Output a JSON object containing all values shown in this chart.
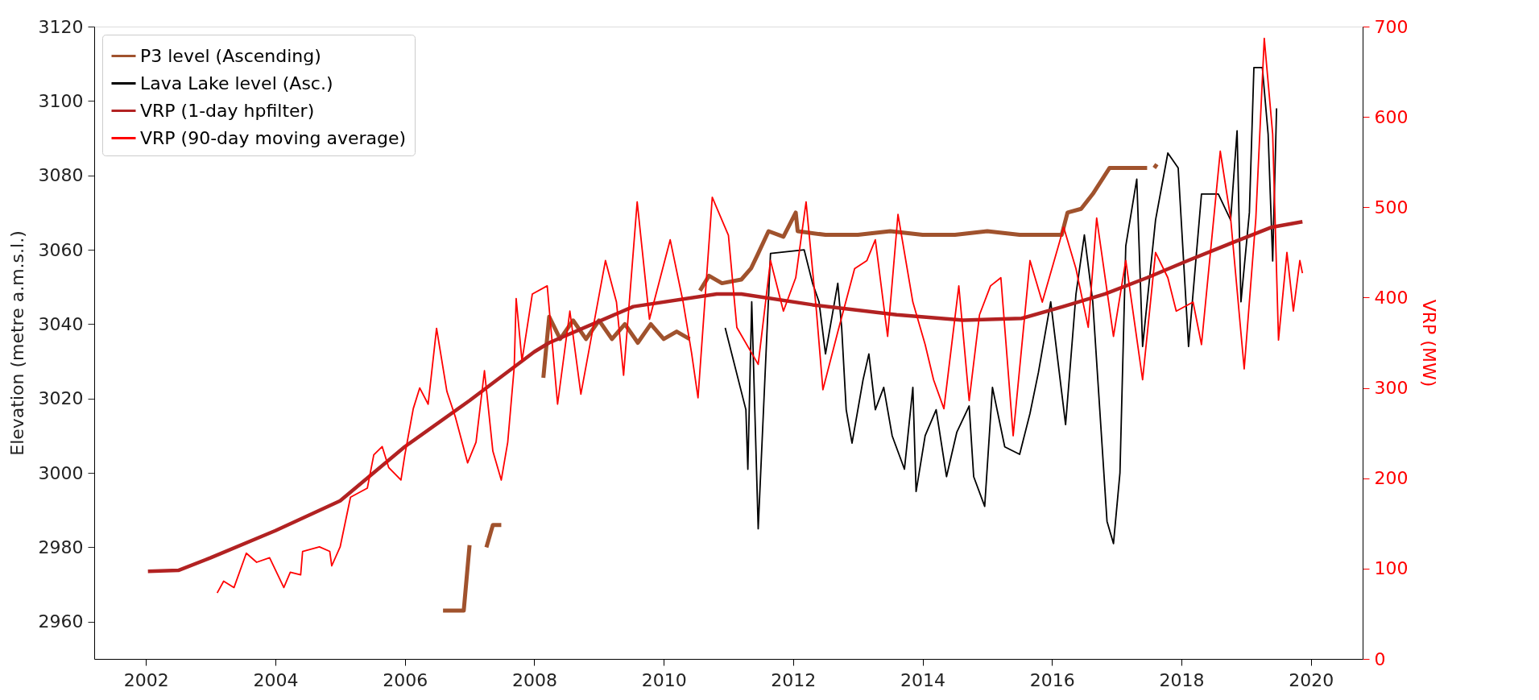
{
  "chart_data": {
    "type": "line",
    "xlim": [
      2001.2,
      2020.8
    ],
    "xticks": [
      2002,
      2004,
      2006,
      2008,
      2010,
      2012,
      2014,
      2016,
      2018,
      2020
    ],
    "ylim": [
      2950,
      3120
    ],
    "yticks": [
      2960,
      2980,
      3000,
      3020,
      3040,
      3060,
      3080,
      3100,
      3120
    ],
    "y2lim": [
      0,
      700
    ],
    "y2ticks": [
      0,
      100,
      200,
      300,
      400,
      500,
      600,
      700
    ],
    "ylabel": "Elevation (metre a.m.s.l.)",
    "y2label": "VRP (MW)",
    "legend": "top left",
    "grid": false,
    "series": [
      {
        "name": "P3 level (Ascending)",
        "color": "#a0522d",
        "x": [
          2006.59,
          2006.91,
          2007.0,
          2007.1,
          2007.26,
          2007.36,
          2007.49,
          2007.8,
          2008.14,
          2008.23,
          2008.4,
          2008.6,
          2008.8,
          2009.0,
          2009.2,
          2009.4,
          2009.6,
          2009.8,
          2010.0,
          2010.2,
          2010.4,
          2010.48,
          2010.56,
          2010.7,
          2010.9,
          2011.2,
          2011.35,
          2011.46,
          2011.62,
          2011.85,
          2012.04,
          2012.07,
          2012.5,
          2013.0,
          2013.5,
          2014.0,
          2014.5,
          2015.0,
          2015.5,
          2016.15,
          2016.24,
          2016.45,
          2016.63,
          2016.89,
          2017.2,
          2017.47,
          2017.53,
          2017.58,
          2017.62
        ],
        "values": [
          2963,
          2963,
          2980.6,
          null,
          2980,
          2986,
          2986,
          null,
          3025.6,
          3042,
          3036,
          3041,
          3036,
          3041,
          3036,
          3040,
          3035,
          3040,
          3036,
          3038,
          3036,
          null,
          3049,
          3053,
          3051,
          3052,
          3055,
          3059,
          3065,
          3063.5,
          3070,
          3065,
          3064,
          3064,
          3065,
          3064,
          3064,
          3065,
          3064,
          3064,
          3070,
          3071,
          3075,
          3082,
          3082,
          3082,
          null,
          3082,
          3083
        ]
      },
      {
        "name": "Lava Lake level (Asc.)",
        "color": "#000000",
        "x": [
          2010.95,
          2011.27,
          2011.3,
          2011.36,
          2011.46,
          2011.65,
          2012.17,
          2012.3,
          2012.4,
          2012.5,
          2012.69,
          2012.75,
          2012.82,
          2012.91,
          2013.08,
          2013.17,
          2013.27,
          2013.4,
          2013.53,
          2013.72,
          2013.85,
          2013.9,
          2014.04,
          2014.21,
          2014.37,
          2014.53,
          2014.72,
          2014.79,
          2014.96,
          2015.08,
          2015.27,
          2015.5,
          2015.66,
          2015.79,
          2015.98,
          2016.21,
          2016.37,
          2016.5,
          2016.63,
          2016.85,
          2016.95,
          2017.05,
          2017.14,
          2017.31,
          2017.4,
          2017.6,
          2017.79,
          2017.95,
          2018.11,
          2018.31,
          2018.57,
          2018.76,
          2018.86,
          2018.92,
          2019.05,
          2019.12,
          2019.25,
          2019.34,
          2019.41,
          2019.47
        ],
        "values": [
          3039,
          3017,
          3001,
          3046,
          2985,
          3059,
          3060,
          3051,
          3046,
          3032,
          3051,
          3039,
          3017,
          3008,
          3025,
          3032,
          3017,
          3023,
          3010,
          3001,
          3023,
          2995,
          3010,
          3017,
          2999,
          3011,
          3018,
          2999,
          2991,
          3023,
          3007,
          3005,
          3016,
          3027,
          3046,
          3013,
          3048,
          3064,
          3046,
          2987,
          2981,
          3000,
          3061,
          3079,
          3034,
          3068,
          3086,
          3082,
          3034,
          3075,
          3075,
          3068,
          3092,
          3046,
          3070,
          3109,
          3109,
          3091,
          3057,
          3098
        ]
      },
      {
        "name": "VRP (1-day hpfilter)",
        "color": "#b22222",
        "axis": "y2",
        "x": [
          2002.03,
          2002.5,
          2003.0,
          2004.0,
          2005.0,
          2006.0,
          2007.0,
          2008.0,
          2008.23,
          2009.53,
          2010.82,
          2011.2,
          2012.3,
          2013.6,
          2014.63,
          2015.53,
          2016.17,
          2016.82,
          2017.47,
          2018.1,
          2018.76,
          2019.4,
          2019.87
        ],
        "values": [
          97,
          98,
          112,
          142,
          175,
          235,
          286,
          340,
          350,
          390,
          404,
          404,
          392,
          381,
          375,
          377,
          390,
          404,
          422,
          441,
          460,
          478,
          484
        ]
      },
      {
        "name": "VRP (90-day moving average)",
        "color": "#ff0000",
        "axis": "y2",
        "x": [
          2003.1,
          2003.2,
          2003.36,
          2003.55,
          2003.71,
          2003.91,
          2004.13,
          2004.23,
          2004.39,
          2004.42,
          2004.68,
          2004.84,
          2004.87,
          2005.0,
          2005.16,
          2005.42,
          2005.52,
          2005.65,
          2005.75,
          2005.94,
          2006.0,
          2006.13,
          2006.23,
          2006.36,
          2006.49,
          2006.65,
          2006.78,
          2006.97,
          2007.1,
          2007.23,
          2007.36,
          2007.49,
          2007.59,
          2007.69,
          2007.72,
          2007.81,
          2007.97,
          2008.2,
          2008.36,
          2008.55,
          2008.72,
          2009.1,
          2009.27,
          2009.38,
          2009.59,
          2009.78,
          2010.1,
          2010.3,
          2010.43,
          2010.53,
          2010.75,
          2011.0,
          2011.13,
          2011.46,
          2011.65,
          2011.85,
          2012.04,
          2012.2,
          2012.36,
          2012.46,
          2012.69,
          2012.95,
          2013.14,
          2013.27,
          2013.46,
          2013.62,
          2013.85,
          2014.04,
          2014.17,
          2014.33,
          2014.56,
          2014.72,
          2014.88,
          2015.05,
          2015.21,
          2015.4,
          2015.66,
          2015.85,
          2016.11,
          2016.18,
          2016.37,
          2016.56,
          2016.69,
          2016.95,
          2017.14,
          2017.4,
          2017.6,
          2017.79,
          2017.92,
          2018.18,
          2018.31,
          2018.6,
          2018.76,
          2018.97,
          2019.15,
          2019.28,
          2019.41,
          2019.5,
          2019.63,
          2019.73,
          2019.83,
          2019.87
        ],
        "values": [
          73,
          86,
          79,
          117,
          107,
          112,
          79,
          96,
          93,
          119,
          124,
          119,
          103,
          124,
          179,
          189,
          226,
          235,
          212,
          198,
          226,
          277,
          300,
          282,
          366,
          296,
          268,
          217,
          240,
          319,
          230,
          198,
          240,
          323,
          399,
          330,
          404,
          413,
          282,
          385,
          293,
          441,
          395,
          314,
          506,
          376,
          464,
          395,
          339,
          289,
          511,
          469,
          367,
          326,
          441,
          385,
          422,
          506,
          385,
          298,
          362,
          432,
          441,
          464,
          357,
          492,
          395,
          348,
          309,
          277,
          413,
          286,
          381,
          413,
          422,
          247,
          441,
          395,
          460,
          478,
          432,
          367,
          488,
          357,
          441,
          309,
          450,
          422,
          385,
          395,
          348,
          562,
          488,
          321,
          488,
          687,
          581,
          353,
          450,
          385,
          441,
          427
        ]
      }
    ]
  }
}
